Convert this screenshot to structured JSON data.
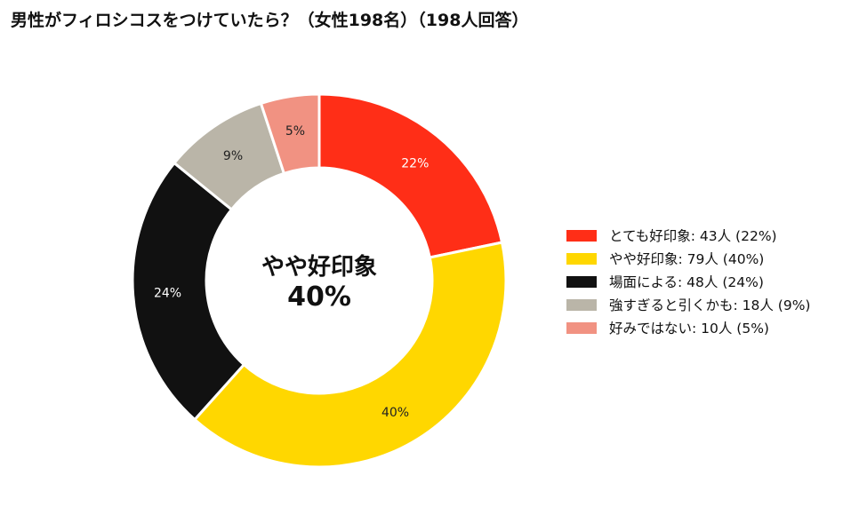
{
  "chart_data": {
    "type": "pie",
    "title": "男性がフィロシコスをつけていたら？（女性198名）（198人回答）",
    "donut": true,
    "categories": [
      "とても好印象",
      "やや好印象",
      "場面による",
      "強すぎると引くかも",
      "好みではない"
    ],
    "values": [
      43,
      79,
      48,
      18,
      10
    ],
    "percent_labels": [
      "22%",
      "40%",
      "24%",
      "9%",
      "5%"
    ],
    "legend_labels": [
      "とても好印象:  43人 (22%)",
      "やや好印象:  79人 (40%)",
      "場面による:  48人 (24%)",
      "強すぎると引くかも:  18人 (9%)",
      "好みではない:  10人 (5%)"
    ],
    "colors": [
      "#ff2e17",
      "#ffd700",
      "#111111",
      "#bab5a8",
      "#f19282"
    ],
    "label_colors": [
      "#ffffff",
      "#222222",
      "#ffffff",
      "#222222",
      "#222222"
    ],
    "center_label": "やや好印象",
    "center_value": "40%",
    "legend_position": "right"
  }
}
